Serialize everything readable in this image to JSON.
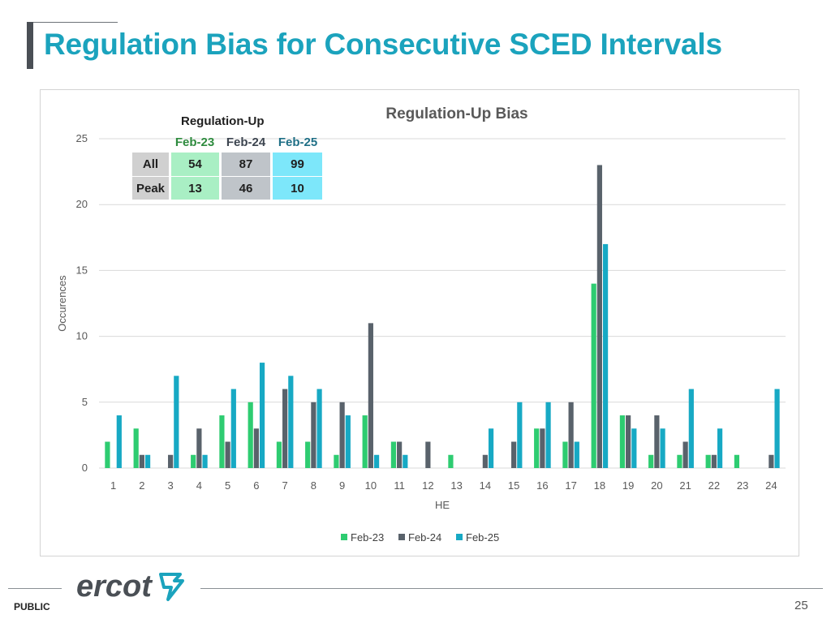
{
  "slide": {
    "title": "Regulation Bias for Consecutive SCED Intervals",
    "footer_label": "PUBLIC",
    "page_number": "25",
    "logo_text": "ercot"
  },
  "summary_table": {
    "caption": "Regulation-Up",
    "columns": [
      "Feb-23",
      "Feb-24",
      "Feb-25"
    ],
    "rows": [
      {
        "label": "All",
        "values": [
          "54",
          "87",
          "99"
        ]
      },
      {
        "label": "Peak",
        "values": [
          "13",
          "46",
          "10"
        ]
      }
    ],
    "colors": {
      "header_feb23": "#2e8b3e",
      "header_feb24": "#3d4550",
      "header_feb25": "#1f6f86",
      "fill_row_label": "#d0d0d0",
      "fill_feb23": "#a9efc4",
      "fill_feb24": "#bfc4c9",
      "fill_feb25": "#7de7fa"
    }
  },
  "chart_data": {
    "type": "bar",
    "title": "Regulation-Up Bias",
    "xlabel": "HE",
    "ylabel": "Occurences",
    "ylim": [
      0,
      25
    ],
    "yticks": [
      0,
      5,
      10,
      15,
      20,
      25
    ],
    "grid": true,
    "legend_position": "bottom",
    "categories": [
      "1",
      "2",
      "3",
      "4",
      "5",
      "6",
      "7",
      "8",
      "9",
      "10",
      "11",
      "12",
      "13",
      "14",
      "15",
      "16",
      "17",
      "18",
      "19",
      "20",
      "21",
      "22",
      "23",
      "24"
    ],
    "series": [
      {
        "name": "Feb-23",
        "color": "#2ecc71",
        "values": [
          2,
          3,
          0,
          1,
          4,
          5,
          2,
          2,
          1,
          4,
          2,
          0,
          1,
          0,
          0,
          3,
          2,
          14,
          4,
          1,
          1,
          1,
          1,
          0
        ]
      },
      {
        "name": "Feb-24",
        "color": "#59626b",
        "values": [
          0,
          1,
          1,
          3,
          2,
          3,
          6,
          5,
          5,
          11,
          2,
          2,
          0,
          1,
          2,
          3,
          5,
          23,
          4,
          4,
          2,
          1,
          0,
          1
        ]
      },
      {
        "name": "Feb-25",
        "color": "#17a9c4",
        "values": [
          4,
          1,
          7,
          1,
          6,
          8,
          7,
          6,
          4,
          1,
          1,
          0,
          0,
          3,
          5,
          5,
          2,
          17,
          3,
          3,
          6,
          3,
          0,
          6
        ]
      }
    ]
  }
}
